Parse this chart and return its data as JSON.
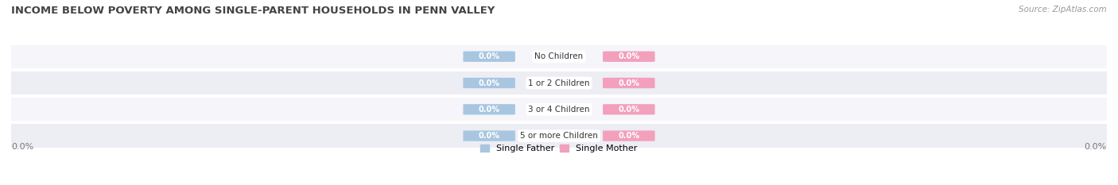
{
  "title": "INCOME BELOW POVERTY AMONG SINGLE-PARENT HOUSEHOLDS IN PENN VALLEY",
  "source": "Source: ZipAtlas.com",
  "categories": [
    "No Children",
    "1 or 2 Children",
    "3 or 4 Children",
    "5 or more Children"
  ],
  "single_father_values": [
    0.0,
    0.0,
    0.0,
    0.0
  ],
  "single_mother_values": [
    0.0,
    0.0,
    0.0,
    0.0
  ],
  "father_color": "#a8c6e0",
  "mother_color": "#f2a0bc",
  "row_colors": [
    "#ededf4",
    "#f5f5fa"
  ],
  "title_fontsize": 9.5,
  "source_fontsize": 7.5,
  "axis_label_fontsize": 8,
  "legend_fontsize": 8,
  "background_color": "#ffffff"
}
